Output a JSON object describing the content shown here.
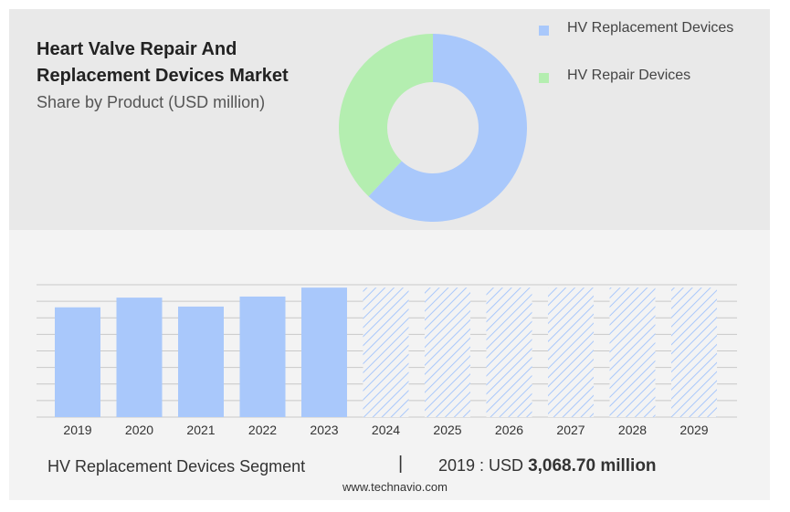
{
  "header": {
    "title": "Heart Valve Repair And Replacement Devices Market",
    "subtitle": "Share by Product (USD million)"
  },
  "colors": {
    "replacement": "#a9c8fb",
    "repair": "#b4eeb0",
    "grid": "#c8c8c8",
    "hatch": "#a9c8fb"
  },
  "chart_data": [
    {
      "type": "pie",
      "style": "donut",
      "slices": [
        {
          "name": "HV Replacement Devices",
          "share": 0.62,
          "color": "#a9c8fb"
        },
        {
          "name": "HV Repair Devices",
          "share": 0.38,
          "color": "#b4eeb0"
        }
      ],
      "legend": "top-right"
    },
    {
      "type": "bar",
      "categories": [
        "2019",
        "2020",
        "2021",
        "2022",
        "2023",
        "2024",
        "2025",
        "2026",
        "2027",
        "2028",
        "2029"
      ],
      "values": [
        3068.7,
        3340,
        3090,
        3370,
        3620,
        3620,
        3620,
        3620,
        3620,
        3620,
        3620
      ],
      "forecast_from": "2024",
      "forecast_style": "hatched placeholder bars",
      "ylim": [
        0,
        3700
      ],
      "grid": true
    }
  ],
  "footer": {
    "segment": "HV Replacement Devices Segment",
    "separator": "|",
    "value_prefix": "2019 : USD",
    "value": "3,068.70 million",
    "source": "www.technavio.com"
  }
}
